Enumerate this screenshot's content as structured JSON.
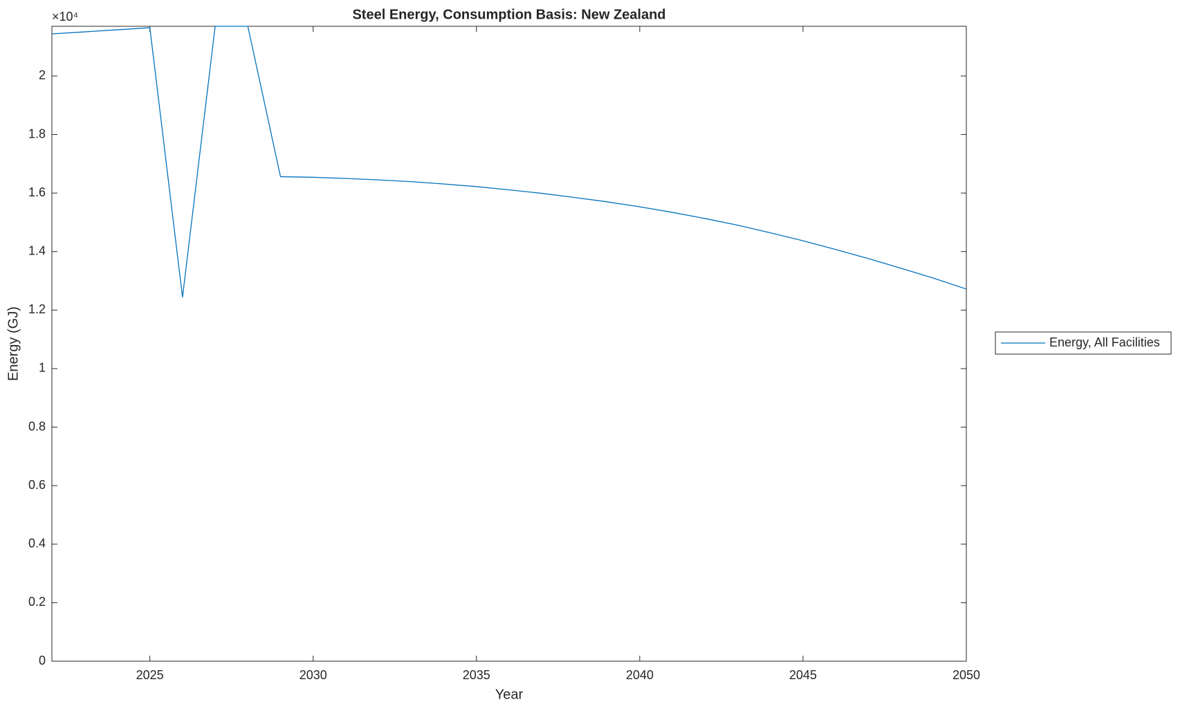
{
  "chart_data": {
    "type": "line",
    "title": "Steel Energy, Consumption Basis: New Zealand",
    "x_label": "Year",
    "y_label": "Energy (GJ)",
    "y_multiplier": "×10⁴",
    "x": [
      2022,
      2023,
      2024,
      2025,
      2026,
      2027,
      2028,
      2029,
      2030,
      2031,
      2032,
      2033,
      2034,
      2035,
      2036,
      2037,
      2038,
      2039,
      2040,
      2041,
      2042,
      2043,
      2044,
      2045,
      2046,
      2047,
      2048,
      2049,
      2050
    ],
    "series": [
      {
        "name": "Energy, All Facilities",
        "color": "#0072bd",
        "values": [
          2.144,
          2.151,
          2.158,
          2.165,
          1.244,
          2.17,
          2.17,
          1.656,
          1.654,
          1.65,
          1.645,
          1.639,
          1.631,
          1.622,
          1.611,
          1.599,
          1.585,
          1.57,
          1.553,
          1.534,
          1.513,
          1.49,
          1.464,
          1.437,
          1.407,
          1.376,
          1.343,
          1.309,
          1.272
        ]
      }
    ],
    "xlim": [
      2022,
      2050
    ],
    "ylim": [
      0,
      2.17
    ],
    "xticks": [
      2025,
      2030,
      2035,
      2040,
      2045,
      2050
    ],
    "yticks": [
      0,
      0.2,
      0.4,
      0.6,
      0.8,
      1,
      1.2,
      1.4,
      1.6,
      1.8,
      2
    ],
    "grid": false,
    "legend": "east-outside"
  }
}
